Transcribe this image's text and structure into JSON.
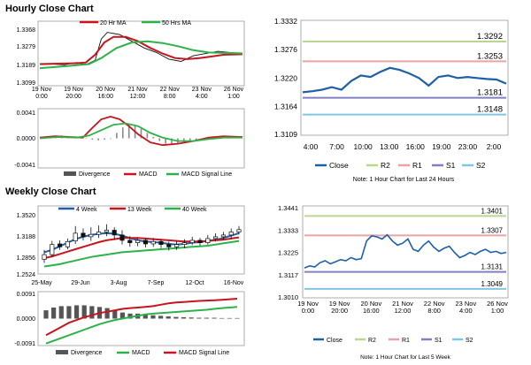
{
  "colors": {
    "bg": "#ffffff",
    "blue": "#1f5fa8",
    "green": "#2db24a",
    "red": "#c8141e",
    "grey": "#888888",
    "frame": "#9a9a9a",
    "r2": "#b9d88f",
    "r1": "#e8a5a5",
    "s1": "#8080c0",
    "s2": "#7ec8e3"
  },
  "hourly": {
    "section_title": "Hourly Close Chart",
    "price_panel": {
      "type": "line",
      "legend": [
        {
          "name": "20 Hr MA",
          "color": "#c8141e"
        },
        {
          "name": "50 Hrs MA",
          "color": "#2db24a"
        }
      ],
      "yticks": [
        "1.3368",
        "1.3279",
        "1.3189",
        "1.3099"
      ],
      "ylim": [
        1.3099,
        1.3368
      ],
      "xticks": [
        "19 Nov\n0:00",
        "19 Nov\n20:00",
        "20 Nov\n16:00",
        "21 Nov\n12:00",
        "22 Nov\n8:00",
        "23 Nov\n4:00",
        "26 Nov\n1:00"
      ],
      "series": [
        {
          "name": "Close",
          "x": [
            0,
            8,
            16,
            24,
            30,
            36,
            40,
            44,
            52,
            60,
            68,
            76,
            84,
            92,
            100,
            108,
            116,
            124,
            132
          ],
          "values": [
            1.3186,
            1.3188,
            1.3185,
            1.3195,
            1.3185,
            1.3205,
            1.33,
            1.333,
            1.332,
            1.329,
            1.326,
            1.324,
            1.321,
            1.32,
            1.3225,
            1.3235,
            1.3245,
            1.324,
            1.3235
          ]
        },
        {
          "name": "20 Hr MA",
          "x": [
            0,
            12,
            24,
            30,
            36,
            42,
            48,
            56,
            64,
            72,
            80,
            88,
            96,
            104,
            112,
            120,
            132
          ],
          "values": [
            1.3188,
            1.319,
            1.3192,
            1.3195,
            1.323,
            1.3285,
            1.331,
            1.331,
            1.329,
            1.326,
            1.3235,
            1.3215,
            1.321,
            1.3215,
            1.3222,
            1.323,
            1.3232
          ]
        },
        {
          "name": "50 Hrs MA",
          "x": [
            0,
            16,
            32,
            40,
            50,
            60,
            70,
            80,
            90,
            100,
            110,
            120,
            132
          ],
          "values": [
            1.317,
            1.3178,
            1.3188,
            1.3215,
            1.326,
            1.3285,
            1.329,
            1.3282,
            1.3268,
            1.325,
            1.324,
            1.3238,
            1.3236
          ]
        }
      ]
    },
    "macd_panel": {
      "yticks": [
        "0.0041",
        "0.0000",
        "-0.0041"
      ],
      "ylim": [
        -0.0041,
        0.0041
      ],
      "divergence": [
        0.0,
        0.0001,
        0.0002,
        0.0004,
        0.0003,
        0.0002,
        0.0002,
        0.0001,
        -0.0002,
        -0.0003,
        -0.0002,
        -0.0001,
        0.0008,
        0.0016,
        0.002,
        0.0018,
        0.0014,
        0.0008,
        0.0002,
        -0.0004,
        -0.0008,
        -0.001,
        -0.0008,
        -0.0006,
        -0.0004,
        -0.0002,
        -0.0001,
        0.0001,
        0.0002,
        0.0002,
        0.0001,
        0.0001,
        0.0
      ],
      "series": [
        {
          "name": "MACD",
          "x": [
            0,
            10,
            20,
            28,
            34,
            40,
            46,
            52,
            58,
            64,
            72,
            80,
            90,
            100,
            110,
            120,
            132
          ],
          "values": [
            0.0001,
            0.0003,
            0.0002,
            0.0001,
            0.0015,
            0.0028,
            0.0032,
            0.0028,
            0.0018,
            0.0006,
            -0.0006,
            -0.001,
            -0.0008,
            -0.0004,
            0.0001,
            0.0003,
            0.0002
          ]
        },
        {
          "name": "MACD Signal Line",
          "x": [
            0,
            12,
            24,
            32,
            40,
            48,
            56,
            64,
            72,
            80,
            90,
            100,
            110,
            120,
            132
          ],
          "values": [
            0.0,
            0.0002,
            0.0001,
            0.0004,
            0.0012,
            0.002,
            0.0022,
            0.0018,
            0.0008,
            0.0001,
            -0.0004,
            -0.0004,
            -0.0001,
            0.0001,
            0.0001
          ]
        }
      ],
      "legend": [
        {
          "name": "Divergence",
          "color": "#888888"
        },
        {
          "name": "MACD",
          "color": "#c8141e"
        },
        {
          "name": "MACD Signal Line",
          "color": "#2db24a"
        }
      ]
    }
  },
  "weekly": {
    "section_title": "Weekly Close Chart",
    "price_panel": {
      "type": "line",
      "legend": [
        {
          "name": "4 Week",
          "color": "#1f5fa8"
        },
        {
          "name": "13 Week",
          "color": "#c8141e"
        },
        {
          "name": "40 Week",
          "color": "#2db24a"
        }
      ],
      "yticks": [
        "1.3520",
        "1.3188",
        "1.2856",
        "1.2524"
      ],
      "ylim": [
        1.2524,
        1.352
      ],
      "xticks": [
        "25-May",
        "29-Jun",
        "3-Aug",
        "7-Sep",
        "12-Oct",
        "16-Nov"
      ],
      "candles": [
        {
          "o": 1.274,
          "c": 1.282,
          "h": 1.29,
          "l": 1.268
        },
        {
          "o": 1.282,
          "c": 1.299,
          "h": 1.305,
          "l": 1.278
        },
        {
          "o": 1.3,
          "c": 1.295,
          "h": 1.306,
          "l": 1.29
        },
        {
          "o": 1.295,
          "c": 1.304,
          "h": 1.309,
          "l": 1.291
        },
        {
          "o": 1.305,
          "c": 1.318,
          "h": 1.33,
          "l": 1.3
        },
        {
          "o": 1.318,
          "c": 1.312,
          "h": 1.326,
          "l": 1.306
        },
        {
          "o": 1.312,
          "c": 1.316,
          "h": 1.328,
          "l": 1.305
        },
        {
          "o": 1.316,
          "c": 1.32,
          "h": 1.331,
          "l": 1.31
        },
        {
          "o": 1.32,
          "c": 1.323,
          "h": 1.333,
          "l": 1.313
        },
        {
          "o": 1.323,
          "c": 1.315,
          "h": 1.328,
          "l": 1.307
        },
        {
          "o": 1.315,
          "c": 1.306,
          "h": 1.323,
          "l": 1.299
        },
        {
          "o": 1.306,
          "c": 1.302,
          "h": 1.313,
          "l": 1.295
        },
        {
          "o": 1.302,
          "c": 1.306,
          "h": 1.311,
          "l": 1.296
        },
        {
          "o": 1.306,
          "c": 1.3,
          "h": 1.309,
          "l": 1.294
        },
        {
          "o": 1.3,
          "c": 1.304,
          "h": 1.31,
          "l": 1.295
        },
        {
          "o": 1.304,
          "c": 1.299,
          "h": 1.308,
          "l": 1.293
        },
        {
          "o": 1.299,
          "c": 1.295,
          "h": 1.304,
          "l": 1.289
        },
        {
          "o": 1.295,
          "c": 1.299,
          "h": 1.305,
          "l": 1.29
        },
        {
          "o": 1.299,
          "c": 1.302,
          "h": 1.308,
          "l": 1.293
        },
        {
          "o": 1.302,
          "c": 1.306,
          "h": 1.312,
          "l": 1.298
        },
        {
          "o": 1.306,
          "c": 1.302,
          "h": 1.31,
          "l": 1.297
        },
        {
          "o": 1.302,
          "c": 1.309,
          "h": 1.315,
          "l": 1.299
        },
        {
          "o": 1.309,
          "c": 1.312,
          "h": 1.318,
          "l": 1.304
        },
        {
          "o": 1.312,
          "c": 1.315,
          "h": 1.32,
          "l": 1.307
        },
        {
          "o": 1.315,
          "c": 1.32,
          "h": 1.326,
          "l": 1.309
        },
        {
          "o": 1.32,
          "c": 1.324,
          "h": 1.33,
          "l": 1.316
        }
      ],
      "series": [
        {
          "name": "4 Week",
          "values": [
            1.286,
            1.29,
            1.296,
            1.302,
            1.308,
            1.312,
            1.315,
            1.317,
            1.318,
            1.317,
            1.314,
            1.31,
            1.306,
            1.304,
            1.303,
            1.302,
            1.3,
            1.299,
            1.3,
            1.302,
            1.303,
            1.305,
            1.307,
            1.31,
            1.314,
            1.318
          ]
        },
        {
          "name": "13 Week",
          "values": [
            1.276,
            1.279,
            1.283,
            1.287,
            1.291,
            1.295,
            1.299,
            1.303,
            1.306,
            1.308,
            1.31,
            1.31,
            1.31,
            1.309,
            1.308,
            1.307,
            1.306,
            1.305,
            1.304,
            1.304,
            1.304,
            1.305,
            1.306,
            1.307,
            1.309,
            1.311
          ]
        },
        {
          "name": "40 Week",
          "values": [
            1.262,
            1.264,
            1.266,
            1.269,
            1.272,
            1.275,
            1.278,
            1.28,
            1.282,
            1.284,
            1.286,
            1.287,
            1.288,
            1.289,
            1.29,
            1.291,
            1.292,
            1.293,
            1.294,
            1.295,
            1.296,
            1.297,
            1.299,
            1.301,
            1.303,
            1.305
          ]
        }
      ]
    },
    "macd_panel": {
      "yticks": [
        "0.0091",
        "0.0000",
        "-0.0091"
      ],
      "ylim": [
        -0.0091,
        0.0091
      ],
      "divergence": [
        0.003,
        0.004,
        0.0045,
        0.0045,
        0.0048,
        0.0048,
        0.0045,
        0.0042,
        0.0038,
        0.003,
        0.0022,
        0.0018,
        0.0018,
        0.0015,
        0.0012,
        0.001,
        0.0008,
        0.0006,
        0.0005,
        0.0004,
        0.0003,
        0.0003,
        0.0003,
        0.0002,
        0.0002,
        0.0002
      ],
      "series": [
        {
          "name": "MACD",
          "values": [
            -0.009,
            -0.008,
            -0.007,
            -0.006,
            -0.005,
            -0.004,
            -0.003,
            -0.002,
            -0.0012,
            -0.0005,
            0.0,
            0.0005,
            0.001,
            0.0015,
            0.0018,
            0.002,
            0.0022,
            0.0024,
            0.0026,
            0.0028,
            0.003,
            0.0032,
            0.0035,
            0.0038,
            0.004,
            0.0042
          ]
        },
        {
          "name": "MACD Signal Line",
          "values": [
            -0.006,
            -0.0045,
            -0.003,
            -0.0015,
            -0.0005,
            0.0005,
            0.0012,
            0.002,
            0.0025,
            0.003,
            0.0035,
            0.0038,
            0.004,
            0.0042,
            0.0045,
            0.005,
            0.0055,
            0.0058,
            0.006,
            0.0062,
            0.0064,
            0.0065,
            0.0066,
            0.0068,
            0.007,
            0.0072
          ]
        }
      ],
      "legend": [
        {
          "name": "Divergence",
          "color": "#888888"
        },
        {
          "name": "MACD",
          "color": "#c8141e"
        },
        {
          "name": "MACD Signal Line",
          "color": "#2db24a"
        }
      ]
    }
  },
  "chart_data": [
    {
      "type": "line",
      "title": "1 Hour Chart for Last 24 Hours",
      "note": "Note: 1 Hour Chart for Last 24 Hours",
      "yticks": [
        "1.3332",
        "1.3276",
        "1.3220",
        "1.3164",
        "1.3109"
      ],
      "ylim": [
        1.3109,
        1.3332
      ],
      "xticks": [
        "4:00",
        "7:00",
        "10:00",
        "13:00",
        "16:00",
        "19:00",
        "23:00",
        "2:00"
      ],
      "levels": [
        {
          "name": "R2",
          "value": 1.3292,
          "label": "1.3292"
        },
        {
          "name": "R1",
          "value": 1.3253,
          "label": "1.3253"
        },
        {
          "name": "S1",
          "value": 1.3181,
          "label": "1.3181"
        },
        {
          "name": "S2",
          "value": 1.3148,
          "label": "1.3148"
        }
      ],
      "series": [
        {
          "name": "Close",
          "values": [
            1.3192,
            1.3194,
            1.3197,
            1.3202,
            1.3197,
            1.3214,
            1.3225,
            1.3222,
            1.3232,
            1.324,
            1.3236,
            1.3229,
            1.322,
            1.3205,
            1.3222,
            1.3225,
            1.322,
            1.3222,
            1.322,
            1.3218,
            1.3217,
            1.3209
          ]
        }
      ],
      "legend": [
        "Close",
        "R2",
        "R1",
        "S1",
        "S2"
      ]
    },
    {
      "type": "line",
      "title": "1 Hour Chart for Last 5 Week",
      "note": "Note: 1 Hour Chart for Last 5 Week",
      "yticks": [
        "1.3441",
        "1.3333",
        "1.3225",
        "1.3117",
        "1.3010"
      ],
      "ylim": [
        1.301,
        1.3441
      ],
      "xticks": [
        "19 Nov\n0:00",
        "19 Nov\n20:00",
        "20 Nov\n16:00",
        "21 Nov\n12:00",
        "22 Nov\n8:00",
        "23 Nov\n4:00",
        "26 Nov\n1:00"
      ],
      "levels": [
        {
          "name": "R2",
          "value": 1.3401,
          "label": "1.3401"
        },
        {
          "name": "R1",
          "value": 1.3307,
          "label": "1.3307"
        },
        {
          "name": "S1",
          "value": 1.3131,
          "label": "1.3131"
        },
        {
          "name": "S2",
          "value": 1.3049,
          "label": "1.3049"
        }
      ],
      "series": [
        {
          "name": "Close",
          "values": [
            1.315,
            1.316,
            1.3155,
            1.3175,
            1.3185,
            1.317,
            1.318,
            1.319,
            1.3185,
            1.32,
            1.319,
            1.3195,
            1.328,
            1.3305,
            1.33,
            1.329,
            1.331,
            1.328,
            1.326,
            1.327,
            1.329,
            1.324,
            1.323,
            1.326,
            1.328,
            1.325,
            1.323,
            1.3245,
            1.3255,
            1.3225,
            1.32,
            1.321,
            1.3225,
            1.3215,
            1.323,
            1.324,
            1.3225,
            1.323,
            1.322,
            1.3225
          ]
        }
      ],
      "legend": [
        "Close",
        "R2",
        "R1",
        "S1",
        "S2"
      ]
    }
  ]
}
